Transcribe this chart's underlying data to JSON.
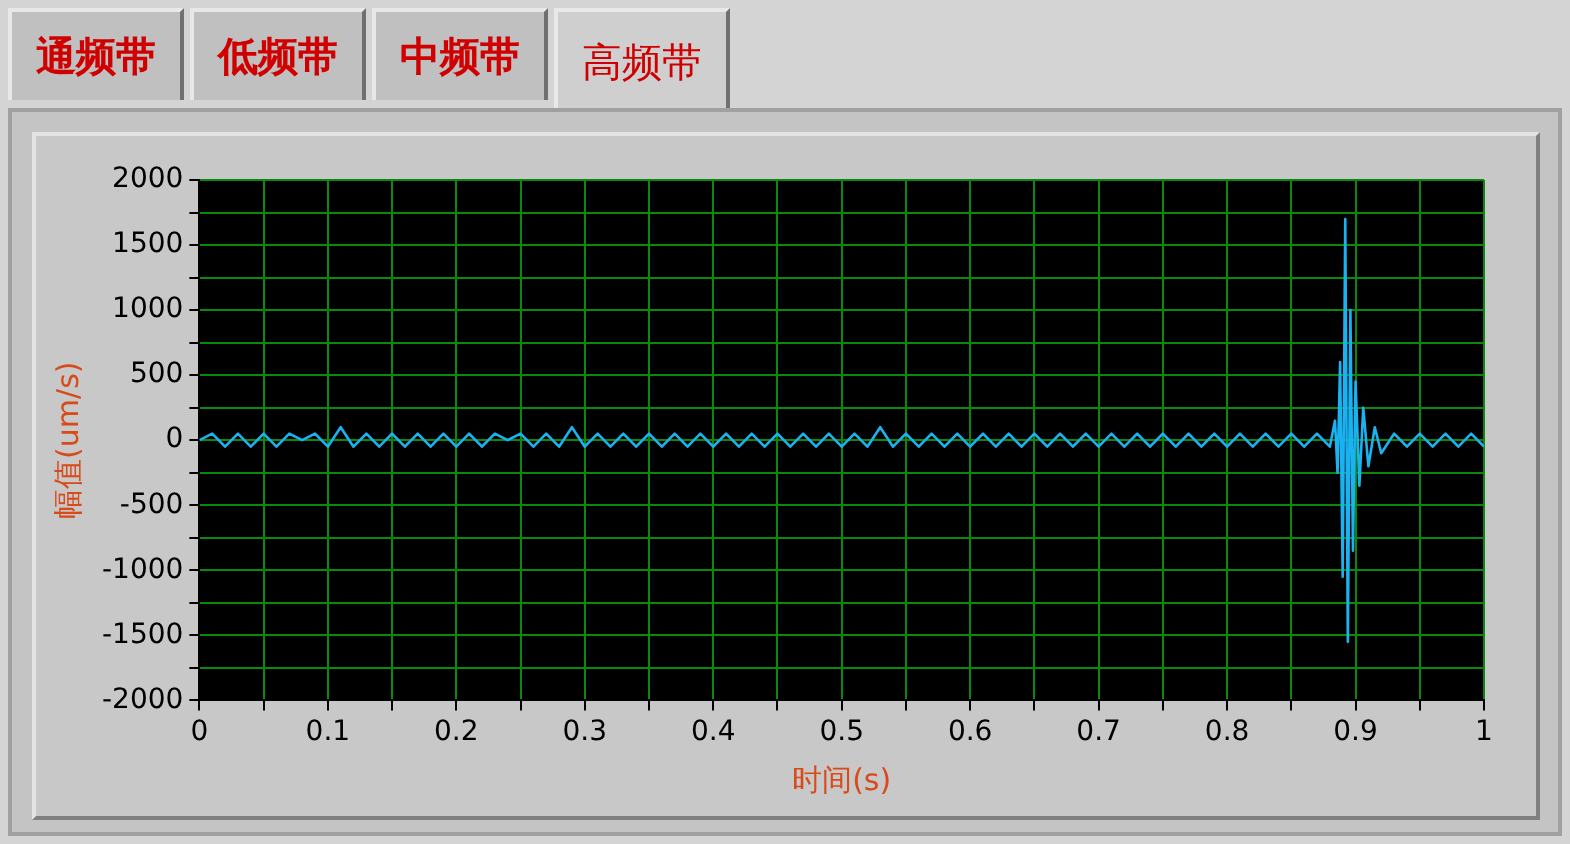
{
  "chart_data": {
    "type": "line",
    "xlabel": "时间(s)",
    "ylabel": "幅值(um/s)",
    "annotations": [
      "通频带",
      "低频带",
      "中频带",
      "高频带"
    ],
    "x": [
      0,
      0.01,
      0.02,
      0.03,
      0.04,
      0.05,
      0.06,
      0.07,
      0.08,
      0.09,
      0.1,
      0.11,
      0.12,
      0.13,
      0.14,
      0.15,
      0.16,
      0.17,
      0.18,
      0.19,
      0.2,
      0.21,
      0.22,
      0.23,
      0.24,
      0.25,
      0.26,
      0.27,
      0.28,
      0.29,
      0.3,
      0.31,
      0.32,
      0.33,
      0.34,
      0.35,
      0.36,
      0.37,
      0.38,
      0.39,
      0.4,
      0.41,
      0.42,
      0.43,
      0.44,
      0.45,
      0.46,
      0.47,
      0.48,
      0.49,
      0.5,
      0.51,
      0.52,
      0.53,
      0.54,
      0.55,
      0.56,
      0.57,
      0.58,
      0.59,
      0.6,
      0.61,
      0.62,
      0.63,
      0.64,
      0.65,
      0.66,
      0.67,
      0.68,
      0.69,
      0.7,
      0.71,
      0.72,
      0.73,
      0.74,
      0.75,
      0.76,
      0.77,
      0.78,
      0.79,
      0.8,
      0.81,
      0.82,
      0.83,
      0.84,
      0.85,
      0.86,
      0.87,
      0.88,
      0.884,
      0.886,
      0.888,
      0.89,
      0.892,
      0.894,
      0.896,
      0.898,
      0.9,
      0.903,
      0.906,
      0.91,
      0.915,
      0.92,
      0.93,
      0.94,
      0.95,
      0.96,
      0.97,
      0.98,
      0.99,
      1
    ],
    "series": [
      {
        "color": "#1ab2f0",
        "values": [
          0,
          50,
          -50,
          50,
          -50,
          50,
          -50,
          50,
          0,
          50,
          -50,
          100,
          -50,
          50,
          -50,
          50,
          -50,
          50,
          -50,
          50,
          -50,
          50,
          -50,
          50,
          0,
          50,
          -50,
          50,
          -50,
          100,
          -50,
          50,
          -50,
          50,
          -50,
          50,
          -50,
          50,
          -50,
          50,
          -50,
          50,
          -50,
          50,
          -50,
          50,
          -50,
          50,
          -50,
          50,
          -50,
          50,
          -50,
          100,
          -50,
          50,
          -50,
          50,
          -50,
          50,
          -50,
          50,
          -50,
          50,
          -50,
          50,
          -50,
          50,
          -50,
          50,
          -50,
          50,
          -50,
          50,
          -50,
          50,
          -50,
          50,
          -50,
          50,
          -50,
          50,
          -50,
          50,
          -50,
          50,
          -50,
          50,
          -50,
          150,
          -250,
          600,
          -1050,
          1700,
          -1550,
          1000,
          -850,
          450,
          -350,
          250,
          -200,
          100,
          -100,
          50,
          -50,
          50,
          -50,
          50,
          -50,
          50,
          -50
        ]
      }
    ],
    "xlim": [
      0,
      1
    ],
    "xticks": [
      0,
      {
        "value": 0.05,
        "label": null
      },
      0.1,
      {
        "value": 0.15,
        "label": null
      },
      0.2,
      {
        "value": 0.25,
        "label": null
      },
      0.3,
      {
        "value": 0.35,
        "label": null
      },
      0.4,
      {
        "value": 0.45,
        "label": null
      },
      0.5,
      {
        "value": 0.55,
        "label": null
      },
      0.6,
      {
        "value": 0.65,
        "label": null
      },
      0.7,
      {
        "value": 0.75,
        "label": null
      },
      0.8,
      {
        "value": 0.85,
        "label": null
      },
      0.9,
      {
        "value": 0.95,
        "label": null
      },
      1
    ],
    "ylim": [
      -2000,
      2000
    ],
    "yticks": [
      -2000,
      {
        "value": -1750,
        "label": null
      },
      -1500,
      {
        "value": -1250,
        "label": null
      },
      -1000,
      {
        "value": -750,
        "label": null
      },
      -500,
      {
        "value": -250,
        "label": null
      },
      0,
      {
        "value": 250,
        "label": null
      },
      500,
      {
        "value": 750,
        "label": null
      },
      1000,
      {
        "value": 1250,
        "label": null
      },
      1500,
      {
        "value": 1750,
        "label": null
      },
      2000
    ],
    "grid": true,
    "marker": "none",
    "line_style": "solid"
  }
}
